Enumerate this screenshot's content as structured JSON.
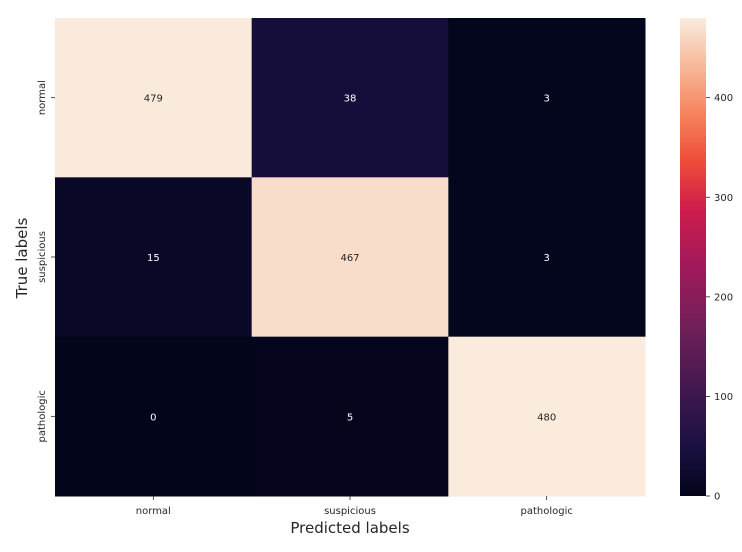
{
  "chart_data": {
    "type": "heatmap",
    "title": "",
    "xlabel": "Predicted labels",
    "ylabel": "True labels",
    "x_categories": [
      "normal",
      "suspicious",
      "pathologic"
    ],
    "y_categories": [
      "normal",
      "suspicious",
      "pathologic"
    ],
    "values": [
      [
        479,
        38,
        3
      ],
      [
        15,
        467,
        3
      ],
      [
        0,
        5,
        480
      ]
    ],
    "colorbar": {
      "range": [
        0,
        480
      ],
      "ticks": [
        "0",
        "100",
        "200",
        "300",
        "400"
      ],
      "colormap": "rocket"
    },
    "grid": false,
    "legend": "colorbar-right"
  }
}
